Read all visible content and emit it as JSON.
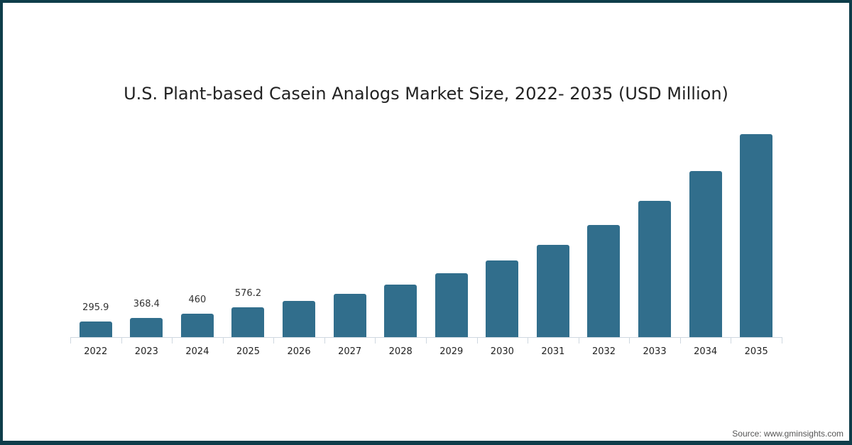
{
  "chart_data": {
    "type": "bar",
    "title": "U.S. Plant-based Casein Analogs Market Size, 2022- 2035 (USD Million)",
    "categories": [
      "2022",
      "2023",
      "2024",
      "2025",
      "2026",
      "2027",
      "2028",
      "2029",
      "2030",
      "2031",
      "2032",
      "2033",
      "2034",
      "2035"
    ],
    "values": [
      295.9,
      368.4,
      460,
      576.2,
      700,
      840,
      1020,
      1230,
      1480,
      1790,
      2170,
      2640,
      3220,
      3930
    ],
    "data_labels": [
      "295.9",
      "368.4",
      "460",
      "576.2",
      "",
      "",
      "",
      "",
      "",
      "",
      "",
      "",
      "",
      ""
    ],
    "xlabel": "",
    "ylabel": "",
    "ylim": [
      0,
      4000
    ],
    "grid": false,
    "legend": null,
    "bar_color": "#316e8c"
  },
  "source": "Source: www.gminsights.com",
  "colors": {
    "border": "#0e3d4a",
    "bar": "#316e8c"
  }
}
